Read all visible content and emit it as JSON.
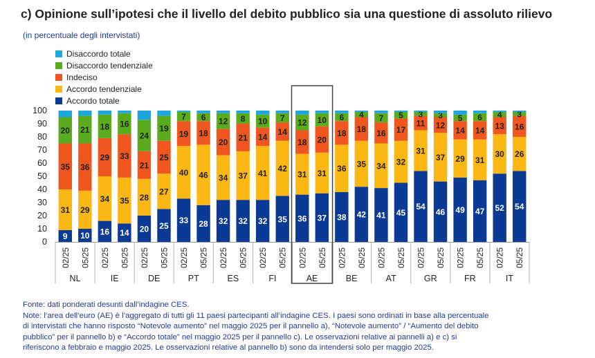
{
  "chart_data": {
    "type": "bar",
    "stacked": true,
    "title": "c) Opinione sull’ipotesi che il livello del debito pubblico sia una questione di assoluto rilievo",
    "subtitle": "(in percentuale degli intervistati)",
    "ylim": [
      0,
      100
    ],
    "yticks": [
      "0",
      "10",
      "20",
      "30",
      "40",
      "50",
      "60",
      "70",
      "80",
      "90",
      "100"
    ],
    "groups": [
      "NL",
      "IE",
      "DE",
      "PT",
      "ES",
      "FI",
      "AE",
      "BE",
      "AT",
      "GR",
      "FR",
      "IT"
    ],
    "periods": [
      "02/25",
      "05/25"
    ],
    "highlight_group": "AE",
    "legend": [
      "Disaccordo totale",
      "Disaccordo tendenziale",
      "Indeciso",
      "Accordo tendenziale",
      "Accordo totale"
    ],
    "colors": {
      "accordo_totale": "#0b3a94",
      "accordo_tendenziale": "#fbb814",
      "indeciso": "#f0561f",
      "disaccordo_tendenziale": "#5aab1e",
      "disaccordo_totale": "#1ea6df"
    },
    "series": [
      {
        "name": "Accordo totale",
        "key": "accordo_totale",
        "values": [
          9,
          10,
          16,
          14,
          20,
          25,
          33,
          28,
          32,
          32,
          32,
          35,
          36,
          37,
          38,
          42,
          41,
          45,
          54,
          46,
          49,
          47,
          52,
          54
        ]
      },
      {
        "name": "Accordo tendenziale",
        "key": "accordo_tendenziale",
        "values": [
          31,
          29,
          34,
          35,
          28,
          27,
          40,
          46,
          34,
          37,
          41,
          42,
          31,
          31,
          36,
          35,
          34,
          32,
          31,
          37,
          29,
          31,
          30,
          26
        ]
      },
      {
        "name": "Indeciso",
        "key": "indeciso",
        "values": [
          35,
          36,
          29,
          33,
          21,
          25,
          19,
          18,
          20,
          21,
          14,
          14,
          18,
          20,
          18,
          18,
          16,
          17,
          11,
          12,
          14,
          14,
          13,
          16
        ]
      },
      {
        "name": "Disaccordo tendenziale",
        "key": "disaccordo_tendenziale",
        "values": [
          20,
          21,
          18,
          16,
          24,
          19,
          7,
          6,
          12,
          8,
          10,
          7,
          12,
          10,
          6,
          4,
          7,
          5,
          3,
          3,
          5,
          6,
          4,
          3
        ]
      },
      {
        "name": "Disaccordo totale",
        "key": "disaccordo_totale",
        "values": [
          5,
          4,
          3,
          2,
          7,
          4,
          1,
          2,
          2,
          2,
          3,
          2,
          3,
          2,
          2,
          1,
          2,
          1,
          1,
          2,
          3,
          2,
          1,
          1
        ]
      }
    ]
  },
  "notes": [
    "Fonte: dati ponderati desunti dall’indagine CES.",
    "Note: l’area dell’euro (AE) è l’aggregato di tutti gli 11 paesi partecipanti all’indagine CES. I paesi sono ordinati in base alla percentuale",
    "di intervistati che hanno risposto “Notevole aumento” nel maggio 2025 per il pannello a), “Notevole aumento” / “Aumento del debito",
    "pubblico” per il pannello b) e “Accordo totale” nel maggio 2025 per il pannello c). Le osservazioni relative ai pannelli a) e c) si",
    "riferiscono a febbraio e maggio 2025. Le osservazioni relative al pannello b) sono da intendersi solo per maggio 2025."
  ]
}
